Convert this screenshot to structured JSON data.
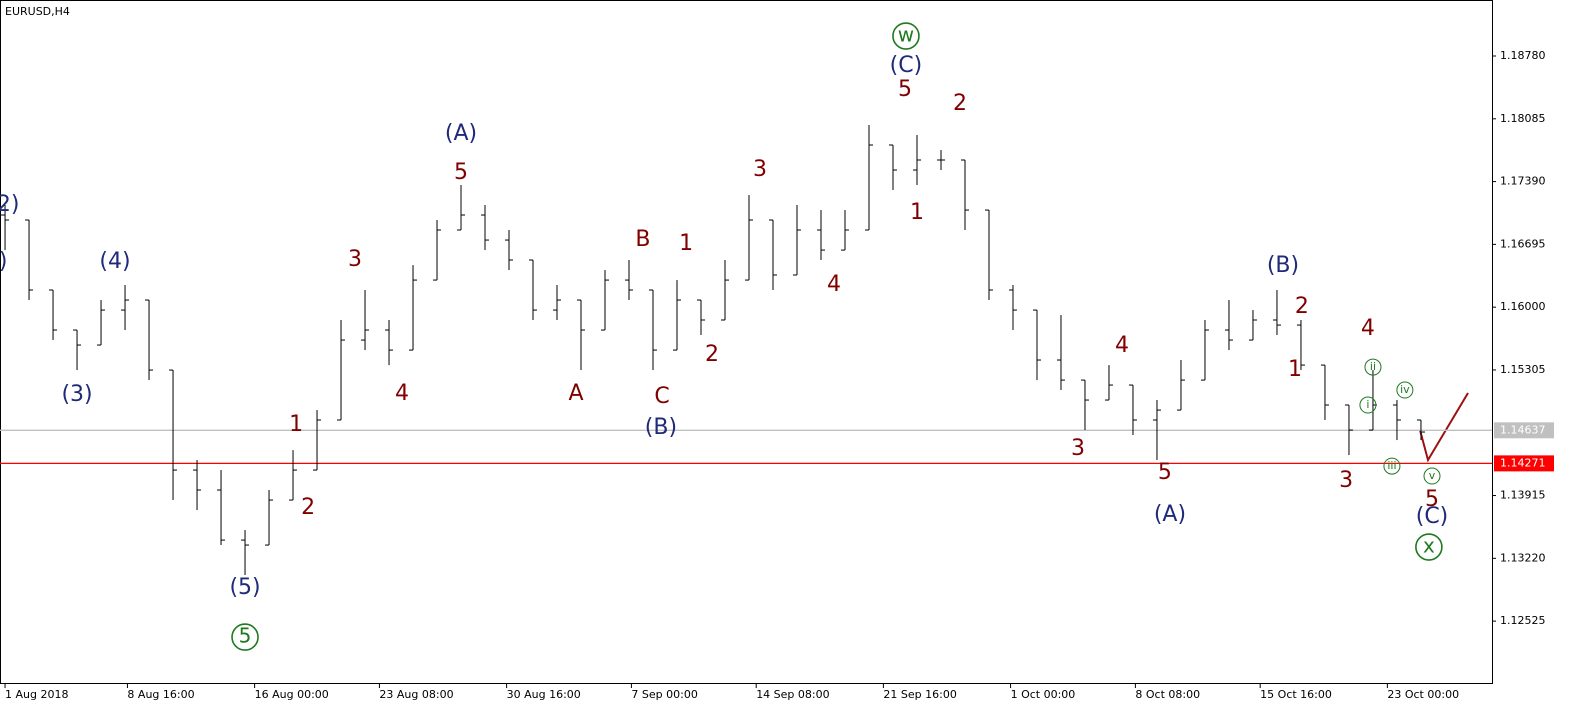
{
  "chart_data": {
    "type": "ohlc",
    "title": "EURUSD,H4",
    "x": [
      0,
      1,
      2,
      3,
      4,
      5,
      6,
      7,
      8,
      9,
      10,
      11,
      12,
      13,
      14,
      15,
      16,
      17,
      18,
      19,
      20,
      21,
      22,
      23,
      24,
      25,
      26,
      27,
      28,
      29,
      30,
      31,
      32,
      33,
      34,
      35,
      36,
      37,
      38,
      39,
      40,
      41,
      42,
      43,
      44,
      45,
      46,
      47,
      48,
      49,
      50,
      51,
      52,
      53,
      54,
      55,
      56,
      57,
      58,
      59
    ],
    "open": [
      1.1702,
      1.16965,
      1.1619,
      1.15747,
      1.15581,
      1.15968,
      1.16079,
      1.15304,
      1.14197,
      1.13976,
      1.13422,
      1.13367,
      1.13865,
      1.14197,
      1.14751,
      1.15636,
      1.15747,
      1.15525,
      1.163,
      1.16854,
      1.1702,
      1.16743,
      1.16522,
      1.15968,
      1.16079,
      1.15747,
      1.163,
      1.1619,
      1.15525,
      1.16079,
      1.15858,
      1.163,
      1.16965,
      1.16356,
      1.16854,
      1.16632,
      1.16854,
      1.17795,
      1.17518,
      1.17629,
      1.17629,
      1.17075,
      1.1619,
      1.15968,
      1.15415,
      1.15193,
      1.14972,
      1.15138,
      1.14751,
      1.14861,
      1.15193,
      1.15747,
      1.15636,
      1.15858,
      1.15802,
      1.15359,
      1.14917,
      1.1464,
      1.14917,
      1.14751
    ],
    "high": [
      1.17131,
      1.16965,
      1.1619,
      1.15747,
      1.16079,
      1.16245,
      1.16079,
      1.15304,
      1.14308,
      1.14197,
      1.13533,
      1.13976,
      1.14418,
      1.14861,
      1.15858,
      1.1619,
      1.15858,
      1.16466,
      1.16965,
      1.17352,
      1.17131,
      1.16854,
      1.16522,
      1.16245,
      1.16079,
      1.16411,
      1.16522,
      1.1619,
      1.163,
      1.16079,
      1.16522,
      1.17241,
      1.16965,
      1.17131,
      1.17075,
      1.17075,
      1.18016,
      1.17795,
      1.17906,
      1.17739,
      1.17629,
      1.17075,
      1.16245,
      1.15968,
      1.15913,
      1.15193,
      1.15359,
      1.15138,
      1.14972,
      1.15415,
      1.15858,
      1.16079,
      1.15968,
      1.1619,
      1.15858,
      1.15359,
      1.14917,
      1.15304,
      1.14972,
      1.14751
    ],
    "low": [
      1.16632,
      1.16079,
      1.15636,
      1.15304,
      1.15581,
      1.15747,
      1.15193,
      1.13865,
      1.13754,
      1.13367,
      1.13035,
      1.13367,
      1.13865,
      1.14197,
      1.14751,
      1.15525,
      1.15359,
      1.15525,
      1.163,
      1.16854,
      1.16632,
      1.16411,
      1.15858,
      1.15858,
      1.15304,
      1.15747,
      1.16079,
      1.15304,
      1.15525,
      1.15692,
      1.15858,
      1.163,
      1.1619,
      1.16356,
      1.16522,
      1.16632,
      1.16854,
      1.17297,
      1.17352,
      1.17518,
      1.16854,
      1.16079,
      1.15747,
      1.15193,
      1.15083,
      1.1464,
      1.14972,
      1.14585,
      1.14308,
      1.14861,
      1.15193,
      1.15525,
      1.15636,
      1.15692,
      1.15304,
      1.14751,
      1.14363,
      1.1464,
      1.14529,
      1.14529
    ],
    "close": [
      1.16965,
      1.1619,
      1.15747,
      1.15581,
      1.15968,
      1.16079,
      1.15304,
      1.14197,
      1.13976,
      1.13422,
      1.13367,
      1.13865,
      1.14197,
      1.14751,
      1.15636,
      1.15747,
      1.15525,
      1.163,
      1.16854,
      1.1702,
      1.16743,
      1.16522,
      1.15968,
      1.16079,
      1.15747,
      1.163,
      1.1619,
      1.15525,
      1.16079,
      1.15858,
      1.163,
      1.16965,
      1.16356,
      1.16854,
      1.16632,
      1.16854,
      1.17795,
      1.17518,
      1.17629,
      1.17629,
      1.17075,
      1.1619,
      1.15968,
      1.15415,
      1.15193,
      1.14972,
      1.15138,
      1.14751,
      1.14861,
      1.15193,
      1.15747,
      1.15636,
      1.15858,
      1.15802,
      1.15359,
      1.14917,
      1.1464,
      1.14917,
      1.14751,
      1.14618
    ],
    "color": "#000000",
    "xlim": [
      -0.21,
      61.96
    ],
    "ylim": [
      1.1184,
      1.194
    ],
    "xticks": [
      {
        "value": 0,
        "label": "1 Aug 2018"
      },
      {
        "value": 5.1,
        "label": "8 Aug 16:00"
      },
      {
        "value": 10.4,
        "label": "16 Aug 00:00"
      },
      {
        "value": 15.6,
        "label": "23 Aug 08:00"
      },
      {
        "value": 20.9,
        "label": "30 Aug 16:00"
      },
      {
        "value": 26.1,
        "label": "7 Sep 00:00"
      },
      {
        "value": 31.3,
        "label": "14 Sep 08:00"
      },
      {
        "value": 36.6,
        "label": "21 Sep 16:00"
      },
      {
        "value": 41.9,
        "label": "1 Oct 00:00"
      },
      {
        "value": 47.1,
        "label": "8 Oct 08:00"
      },
      {
        "value": 52.3,
        "label": "15 Oct 16:00"
      },
      {
        "value": 57.6,
        "label": "23 Oct 00:00"
      }
    ],
    "yticks": [
      {
        "value": 1.1878,
        "label": "1.18780"
      },
      1.18085,
      {
        "value": 1.1739,
        "label": "1.17390"
      },
      1.16695,
      {
        "value": 1.16,
        "label": "1.16000"
      },
      1.15305,
      1.13915,
      {
        "value": 1.1322,
        "label": "1.13220"
      },
      1.12525
    ],
    "hlines": [
      {
        "value": 1.14637,
        "color": "#c0c0c0"
      },
      {
        "value": 1.14271,
        "color": "#ff0000"
      }
    ],
    "annotations": [
      {
        "text": "2)",
        "x": 0.13,
        "y": 1.17131,
        "color": "#1f2a78",
        "style": "wave"
      },
      {
        "text": ")",
        "x": -0.08,
        "y": 1.165,
        "color": "#1f2a78",
        "style": "wave"
      },
      {
        "text": "(4)",
        "x": 4.58,
        "y": 1.165,
        "color": "#1f2a78",
        "style": "wave"
      },
      {
        "text": "(3)",
        "x": 3.0,
        "y": 1.15027,
        "color": "#1f2a78",
        "style": "wave"
      },
      {
        "text": "(5)",
        "x": 10.0,
        "y": 1.12891,
        "color": "#1f2a78",
        "style": "wave"
      },
      {
        "text": "5",
        "x": 10.0,
        "y": 1.12348,
        "color": "#1e7a1e",
        "style": "circle"
      },
      {
        "text": "1",
        "x": 12.13,
        "y": 1.14695,
        "color": "#800000",
        "style": "wave"
      },
      {
        "text": "2",
        "x": 12.63,
        "y": 1.13776,
        "color": "#800000",
        "style": "wave"
      },
      {
        "text": "3",
        "x": 14.58,
        "y": 1.16522,
        "color": "#800000",
        "style": "wave"
      },
      {
        "text": "4",
        "x": 16.54,
        "y": 1.15038,
        "color": "#800000",
        "style": "wave"
      },
      {
        "text": "(A)",
        "x": 19.0,
        "y": 1.17917,
        "color": "#1f2a78",
        "style": "wave"
      },
      {
        "text": "5",
        "x": 19.0,
        "y": 1.17485,
        "color": "#800000",
        "style": "wave"
      },
      {
        "text": "A",
        "x": 23.79,
        "y": 1.15038,
        "color": "#800000",
        "style": "wave"
      },
      {
        "text": "B",
        "x": 26.58,
        "y": 1.16743,
        "color": "#800000",
        "style": "wave"
      },
      {
        "text": "C",
        "x": 27.38,
        "y": 1.15005,
        "color": "#800000",
        "style": "wave"
      },
      {
        "text": "(B)",
        "x": 27.33,
        "y": 1.14662,
        "color": "#1f2a78",
        "style": "wave"
      },
      {
        "text": "1",
        "x": 28.38,
        "y": 1.16699,
        "color": "#800000",
        "style": "wave"
      },
      {
        "text": "2",
        "x": 29.46,
        "y": 1.1547,
        "color": "#800000",
        "style": "wave"
      },
      {
        "text": "3",
        "x": 31.46,
        "y": 1.17518,
        "color": "#800000",
        "style": "wave"
      },
      {
        "text": "4",
        "x": 34.54,
        "y": 1.16245,
        "color": "#800000",
        "style": "wave"
      },
      {
        "text": "w",
        "x": 37.54,
        "y": 1.19001,
        "color": "#1e7a1e",
        "style": "circle"
      },
      {
        "text": "(C)",
        "x": 37.54,
        "y": 1.18669,
        "color": "#1f2a78",
        "style": "wave"
      },
      {
        "text": "5",
        "x": 37.5,
        "y": 1.18404,
        "color": "#800000",
        "style": "wave"
      },
      {
        "text": "1",
        "x": 38.0,
        "y": 1.17042,
        "color": "#800000",
        "style": "wave"
      },
      {
        "text": "2",
        "x": 39.79,
        "y": 1.18249,
        "color": "#800000",
        "style": "wave"
      },
      {
        "text": "3",
        "x": 44.71,
        "y": 1.1443,
        "color": "#800000",
        "style": "wave"
      },
      {
        "text": "4",
        "x": 46.54,
        "y": 1.1557,
        "color": "#800000",
        "style": "wave"
      },
      {
        "text": "5",
        "x": 48.33,
        "y": 1.14164,
        "color": "#800000",
        "style": "wave"
      },
      {
        "text": "(A)",
        "x": 48.54,
        "y": 1.13699,
        "color": "#1f2a78",
        "style": "wave"
      },
      {
        "text": "(B)",
        "x": 53.25,
        "y": 1.16455,
        "color": "#1f2a78",
        "style": "wave"
      },
      {
        "text": "2",
        "x": 54.04,
        "y": 1.16001,
        "color": "#800000",
        "style": "wave"
      },
      {
        "text": "1",
        "x": 53.75,
        "y": 1.15304,
        "color": "#800000",
        "style": "wave"
      },
      {
        "text": "4",
        "x": 56.79,
        "y": 1.15758,
        "color": "#800000",
        "style": "wave"
      },
      {
        "text": "3",
        "x": 55.88,
        "y": 1.14075,
        "color": "#800000",
        "style": "wave"
      },
      {
        "text": "ii",
        "x": 57.0,
        "y": 1.15337,
        "color": "#1e7a1e",
        "style": "small-circle"
      },
      {
        "text": "i",
        "x": 56.79,
        "y": 1.14917,
        "color": "#1e7a1e",
        "style": "small-circle"
      },
      {
        "text": "iv",
        "x": 58.33,
        "y": 1.15083,
        "color": "#1e7a1e",
        "style": "small-circle"
      },
      {
        "text": "iii",
        "x": 57.79,
        "y": 1.14241,
        "color": "#1e7a1e",
        "style": "small-circle"
      },
      {
        "text": "v",
        "x": 59.46,
        "y": 1.14131,
        "color": "#1e7a1e",
        "style": "small-circle"
      },
      {
        "text": "5",
        "x": 59.46,
        "y": 1.13865,
        "color": "#800000",
        "style": "wave"
      },
      {
        "text": "(C)",
        "x": 59.46,
        "y": 1.13677,
        "color": "#1f2a78",
        "style": "wave"
      },
      {
        "text": "x",
        "x": 59.33,
        "y": 1.13345,
        "color": "#1e7a1e",
        "style": "circle"
      }
    ]
  }
}
